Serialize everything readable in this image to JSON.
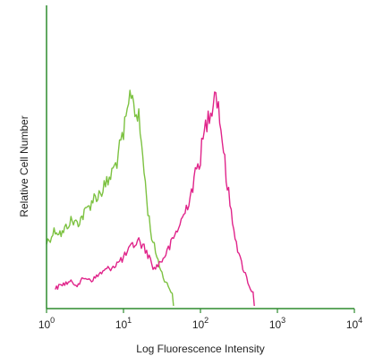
{
  "chart_data": {
    "type": "line",
    "xlabel": "Log Fluorescence Intensity",
    "ylabel": "Relative Cell Number",
    "xscale": "log",
    "xlim": [
      1,
      10000
    ],
    "ylim": [
      0,
      1
    ],
    "grid": false,
    "axis_color": "#2e8b2e",
    "x_ticks": [
      {
        "base": "10",
        "exp": "0",
        "value": 1
      },
      {
        "base": "10",
        "exp": "1",
        "value": 10
      },
      {
        "base": "10",
        "exp": "2",
        "value": 100
      },
      {
        "base": "10",
        "exp": "3",
        "value": 1000
      },
      {
        "base": "10",
        "exp": "4",
        "value": 10000
      }
    ],
    "series": [
      {
        "color": "#7dc242",
        "x": [
          1.0,
          1.3,
          1.6,
          2.0,
          2.5,
          3.2,
          4.0,
          5.0,
          6.3,
          7.9,
          10.0,
          11.2,
          12.6,
          14.1,
          15.8,
          17.8,
          20.0,
          22.4,
          25.1,
          28.2,
          31.6,
          35.5,
          39.8,
          44.7
        ],
        "y": [
          0.24,
          0.3,
          0.28,
          0.34,
          0.33,
          0.38,
          0.44,
          0.47,
          0.52,
          0.6,
          0.73,
          0.83,
          0.94,
          0.86,
          0.8,
          0.64,
          0.44,
          0.3,
          0.22,
          0.16,
          0.1,
          0.06,
          0.03,
          0.0
        ]
      },
      {
        "color": "#e0248a",
        "x": [
          1.3,
          1.6,
          2.0,
          2.5,
          3.2,
          4.0,
          5.0,
          6.3,
          7.9,
          10.0,
          12.6,
          15.8,
          20.0,
          25.1,
          31.6,
          39.8,
          50.1,
          63.1,
          79.4,
          100.0,
          112.2,
          125.9,
          141.3,
          158.5,
          177.8,
          199.5,
          223.9,
          251.2,
          316.2,
          398.1,
          446.7,
          501.2
        ],
        "y": [
          0.03,
          0.05,
          0.06,
          0.05,
          0.08,
          0.07,
          0.1,
          0.12,
          0.14,
          0.17,
          0.22,
          0.25,
          0.2,
          0.12,
          0.16,
          0.22,
          0.3,
          0.38,
          0.5,
          0.64,
          0.74,
          0.82,
          0.88,
          0.95,
          0.82,
          0.66,
          0.5,
          0.38,
          0.18,
          0.08,
          0.03,
          0.0
        ]
      }
    ]
  }
}
